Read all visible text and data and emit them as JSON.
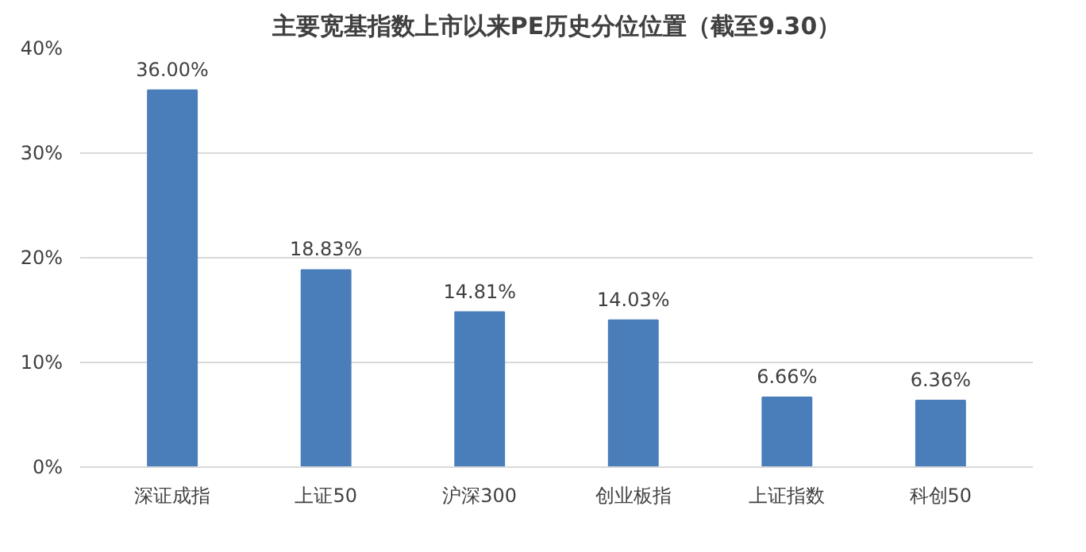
{
  "chart_data": {
    "type": "bar",
    "title": "主要宽基指数上市以来PE历史分位位置（截至9.30）",
    "categories": [
      "深证成指",
      "上证50",
      "沪深300",
      "创业板指",
      "上证指数",
      "科创50"
    ],
    "values": [
      36.0,
      18.83,
      14.81,
      14.03,
      6.66,
      6.36
    ],
    "value_labels": [
      "36.00%",
      "18.83%",
      "14.81%",
      "14.03%",
      "6.66%",
      "6.36%"
    ],
    "color": "#4a7ebb",
    "ylim": [
      0,
      40
    ],
    "yticks": [
      {
        "value": 0,
        "label": "0%"
      },
      {
        "value": 10,
        "label": "10%"
      },
      {
        "value": 20,
        "label": "20%"
      },
      {
        "value": 30,
        "label": "30%"
      },
      {
        "value": 40,
        "label": "40%"
      }
    ],
    "grid": "y"
  }
}
